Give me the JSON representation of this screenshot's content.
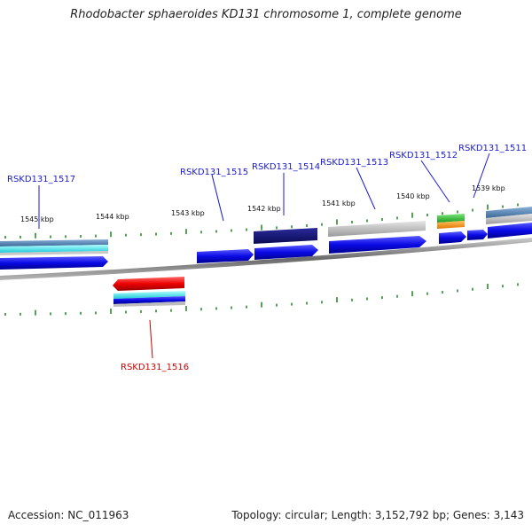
{
  "title": "Rhodobacter sphaeroides KD131 chromosome 1, complete genome",
  "footer": {
    "accession": "Accession: NC_011963",
    "summary": "Topology: circular; Length: 3,152,792 bp; Genes: 3,143"
  },
  "scale": {
    "tick_color": "#2a8a2a",
    "labels": [
      "1545 kbp",
      "1544 kbp",
      "1543 kbp",
      "1542 kbp",
      "1541 kbp",
      "1540 kbp",
      "1539 kbp"
    ]
  },
  "genes": [
    {
      "id": "RSKD131_1517",
      "strand": "forward",
      "color": "#1a1acc"
    },
    {
      "id": "RSKD131_1516",
      "strand": "reverse",
      "color": "#cc0000"
    },
    {
      "id": "RSKD131_1515",
      "strand": "forward",
      "color": "#1a1acc"
    },
    {
      "id": "RSKD131_1514",
      "strand": "forward",
      "color": "#1a1acc"
    },
    {
      "id": "RSKD131_1513",
      "strand": "forward",
      "color": "#1a1acc"
    },
    {
      "id": "RSKD131_1512",
      "strand": "forward",
      "color": "#1a1acc"
    },
    {
      "id": "RSKD131_1511",
      "strand": "forward",
      "color": "#1a1acc"
    }
  ],
  "feature_colors": {
    "cds": "#1010e0",
    "rna_red": "#e00000",
    "dark_navy": "#10106a",
    "grey": "#b8b8b8",
    "green": "#33bb33",
    "orange": "#ff9900",
    "cyan": "#40e0e0",
    "steel": "#4a7aaa"
  }
}
